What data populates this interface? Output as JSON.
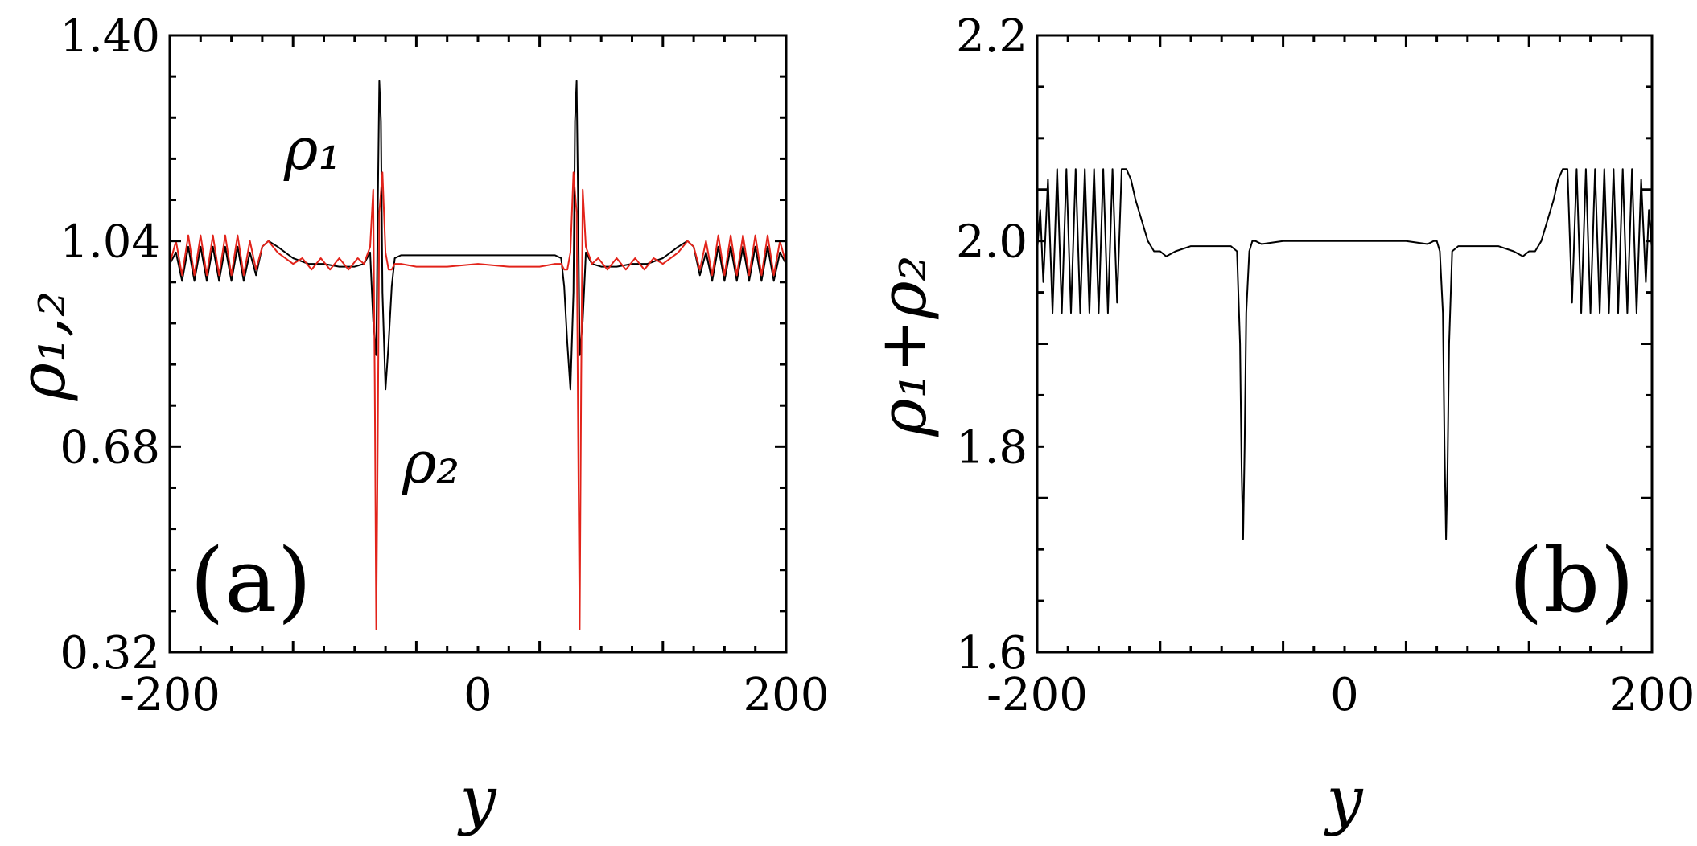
{
  "chart_data": [
    {
      "type": "line",
      "panel_label": "(a)",
      "xlabel": "y",
      "ylabel": "ρ₁,₂",
      "xlim": [
        -200,
        200
      ],
      "ylim": [
        0.32,
        1.4
      ],
      "x_ticks": [
        "-200",
        "0",
        "200"
      ],
      "y_ticks": [
        "1.40",
        "1.04",
        "0.68",
        "0.32"
      ],
      "y_tick_values": [
        1.4,
        1.04,
        0.68,
        0.32
      ],
      "x_tick_values": [
        -200,
        0,
        200
      ],
      "annotations": [
        {
          "text": "ρ₁",
          "x": -102,
          "y": 1.21
        },
        {
          "text": "ρ₂",
          "x": -25,
          "y": 0.72
        }
      ],
      "series": [
        {
          "color": "#000000",
          "note": "rho_1 (annotated)",
          "x": [
            -200,
            -196,
            -192,
            -188,
            -184,
            -180,
            -176,
            -172,
            -168,
            -164,
            -160,
            -156,
            -152,
            -148,
            -144,
            -140,
            -136,
            -130,
            -120,
            -110,
            -100,
            -90,
            -80,
            -74,
            -70,
            -68,
            -66,
            -65,
            -64,
            -63,
            -62,
            -60,
            -58,
            -56,
            -54,
            -50,
            -40,
            -20,
            0,
            20,
            40,
            50,
            54,
            56,
            58,
            60,
            62,
            63,
            64,
            65,
            66,
            68,
            70,
            74,
            80,
            90,
            100,
            110,
            120,
            130,
            136,
            140,
            144,
            148,
            152,
            156,
            160,
            164,
            168,
            172,
            176,
            180,
            184,
            188,
            192,
            196,
            200
          ],
          "y": [
            1.0,
            1.02,
            0.97,
            1.03,
            0.97,
            1.03,
            0.97,
            1.03,
            0.97,
            1.03,
            0.97,
            1.03,
            0.97,
            1.02,
            0.98,
            1.03,
            1.04,
            1.03,
            1.01,
            1.0,
            1.0,
            0.995,
            0.995,
            1.0,
            1.02,
            0.9,
            0.84,
            1.1,
            1.32,
            1.25,
            0.95,
            0.78,
            0.86,
            0.96,
            1.01,
            1.015,
            1.015,
            1.015,
            1.015,
            1.015,
            1.015,
            1.015,
            1.01,
            0.96,
            0.86,
            0.78,
            0.95,
            1.25,
            1.32,
            1.1,
            0.84,
            0.9,
            1.02,
            1.0,
            0.995,
            0.995,
            1.0,
            1.0,
            1.01,
            1.03,
            1.04,
            1.03,
            0.98,
            1.02,
            0.97,
            1.03,
            0.97,
            1.03,
            0.97,
            1.03,
            0.97,
            1.03,
            0.97,
            1.03,
            0.97,
            1.02,
            1.0
          ]
        },
        {
          "color": "#e2231a",
          "note": "rho_2 (annotated)",
          "x": [
            -200,
            -196,
            -192,
            -188,
            -184,
            -180,
            -176,
            -172,
            -168,
            -164,
            -160,
            -156,
            -152,
            -148,
            -144,
            -140,
            -136,
            -130,
            -120,
            -114,
            -108,
            -102,
            -96,
            -90,
            -84,
            -78,
            -74,
            -70,
            -68,
            -67,
            -66,
            -65,
            -64,
            -62,
            -60,
            -58,
            -56,
            -54,
            -50,
            -40,
            -20,
            0,
            20,
            40,
            50,
            54,
            56,
            58,
            60,
            62,
            64,
            65,
            66,
            67,
            68,
            70,
            74,
            78,
            84,
            90,
            96,
            102,
            108,
            114,
            120,
            130,
            136,
            140,
            144,
            148,
            152,
            156,
            160,
            164,
            168,
            172,
            176,
            180,
            184,
            188,
            192,
            196,
            200
          ],
          "y": [
            1.0,
            1.04,
            0.98,
            1.05,
            0.98,
            1.05,
            0.98,
            1.05,
            0.98,
            1.05,
            0.98,
            1.05,
            0.98,
            1.04,
            0.99,
            1.03,
            1.04,
            1.02,
            1.0,
            1.01,
            0.99,
            1.01,
            0.99,
            1.01,
            0.99,
            1.01,
            1.0,
            1.03,
            1.13,
            0.8,
            0.36,
            0.7,
            1.09,
            1.16,
            1.02,
            0.99,
            0.99,
            1.0,
            1.0,
            0.995,
            0.995,
            1.0,
            0.995,
            0.995,
            1.0,
            1.0,
            0.99,
            0.99,
            1.02,
            1.16,
            1.09,
            0.7,
            0.36,
            0.8,
            1.13,
            1.03,
            1.0,
            1.01,
            0.99,
            1.01,
            0.99,
            1.01,
            0.99,
            1.01,
            1.0,
            1.02,
            1.04,
            1.03,
            0.99,
            1.04,
            0.98,
            1.05,
            0.98,
            1.05,
            0.98,
            1.05,
            0.98,
            1.05,
            0.98,
            1.05,
            0.98,
            1.04,
            1.0
          ]
        }
      ]
    },
    {
      "type": "line",
      "panel_label": "(b)",
      "xlabel": "y",
      "ylabel": "ρ₁+ρ₂",
      "xlim": [
        -200,
        200
      ],
      "ylim": [
        1.6,
        2.2
      ],
      "x_ticks": [
        "-200",
        "0",
        "200"
      ],
      "y_ticks": [
        "2.2",
        "2.0",
        "1.8",
        "1.6"
      ],
      "y_tick_values": [
        2.2,
        2.0,
        1.8,
        1.6
      ],
      "x_tick_values": [
        -200,
        0,
        200
      ],
      "series": [
        {
          "color": "#000000",
          "x": [
            -200,
            -198,
            -196,
            -193,
            -190,
            -187,
            -184,
            -181,
            -178,
            -175,
            -172,
            -169,
            -166,
            -163,
            -160,
            -157,
            -154,
            -151,
            -148,
            -145,
            -142,
            -139,
            -136,
            -132,
            -128,
            -124,
            -120,
            -116,
            -110,
            -100,
            -90,
            -80,
            -74,
            -70,
            -68,
            -67,
            -66,
            -65,
            -64,
            -62,
            -60,
            -58,
            -54,
            -40,
            -20,
            0,
            20,
            40,
            54,
            58,
            60,
            62,
            64,
            65,
            66,
            67,
            68,
            70,
            74,
            80,
            90,
            100,
            110,
            116,
            120,
            124,
            128,
            132,
            136,
            139,
            142,
            145,
            148,
            151,
            154,
            157,
            160,
            163,
            166,
            169,
            172,
            175,
            178,
            181,
            184,
            187,
            190,
            193,
            196,
            198,
            200
          ],
          "y": [
            1.99,
            2.03,
            1.96,
            2.06,
            1.93,
            2.07,
            1.93,
            2.07,
            1.93,
            2.07,
            1.93,
            2.07,
            1.93,
            2.07,
            1.93,
            2.07,
            1.93,
            2.07,
            1.94,
            2.07,
            2.07,
            2.06,
            2.04,
            2.02,
            2.0,
            1.99,
            1.99,
            1.985,
            1.99,
            1.995,
            1.995,
            1.995,
            1.995,
            1.99,
            1.9,
            1.78,
            1.71,
            1.8,
            1.93,
            1.99,
            2.0,
            2.0,
            1.997,
            2.0,
            2.0,
            2.0,
            2.0,
            2.0,
            1.997,
            2.0,
            2.0,
            1.99,
            1.93,
            1.8,
            1.71,
            1.78,
            1.9,
            1.99,
            1.995,
            1.995,
            1.995,
            1.995,
            1.99,
            1.985,
            1.99,
            1.99,
            2.0,
            2.02,
            2.04,
            2.06,
            2.07,
            2.07,
            1.94,
            2.07,
            1.93,
            2.07,
            1.93,
            2.07,
            1.93,
            2.07,
            1.93,
            2.07,
            1.93,
            2.07,
            1.93,
            2.07,
            1.93,
            2.06,
            1.96,
            2.03,
            1.99
          ]
        }
      ]
    }
  ]
}
